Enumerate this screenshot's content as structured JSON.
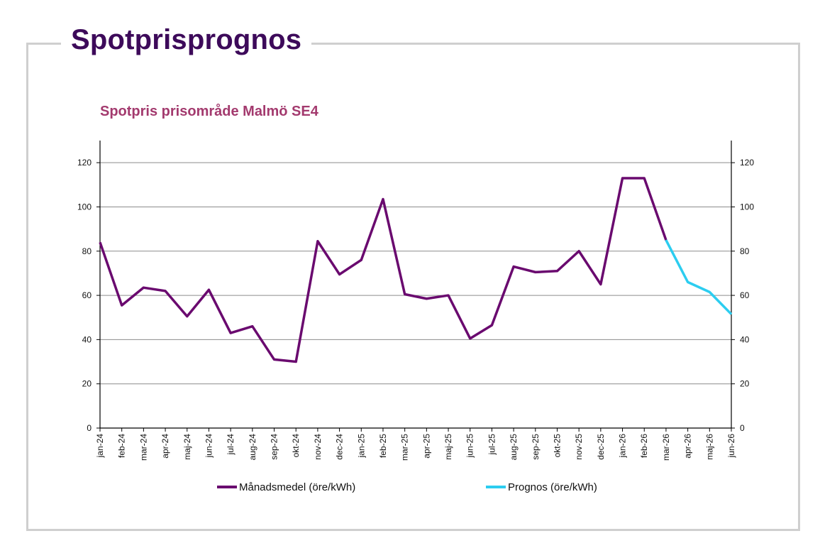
{
  "page": {
    "title": "Spotprisprognos"
  },
  "colors": {
    "title": "#3d0a5a",
    "chart_title": "#a33a6e",
    "actual": "#6a0a6f",
    "forecast": "#2ccdf0",
    "frame": "#cfcfcf",
    "grid": "#8c8c8c"
  },
  "chart_data": {
    "type": "line",
    "title": "Spotpris prisområde Malmö SE4",
    "xlabel": "",
    "ylabel": "",
    "ylim": [
      0,
      130
    ],
    "yticks": [
      0,
      20,
      40,
      60,
      80,
      100,
      120
    ],
    "grid": true,
    "legend_position": "bottom",
    "categories": [
      "jan-24",
      "feb-24",
      "mar-24",
      "apr-24",
      "maj-24",
      "jun-24",
      "jul-24",
      "aug-24",
      "sep-24",
      "okt-24",
      "nov-24",
      "dec-24",
      "jan-25",
      "feb-25",
      "mar-25",
      "apr-25",
      "maj-25",
      "jun-25",
      "jul-25",
      "aug-25",
      "sep-25",
      "okt-25",
      "nov-25",
      "dec-25",
      "jan-26",
      "feb-26",
      "mar-26",
      "apr-26",
      "maj-26",
      "jun-26"
    ],
    "series": [
      {
        "name": "Månadsmedel (öre/kWh)",
        "color": "#6a0a6f",
        "values": [
          84,
          55.5,
          63.5,
          62,
          50.5,
          62.5,
          43,
          46,
          31,
          30,
          84.5,
          69.5,
          76,
          103.5,
          60.5,
          58.5,
          60,
          40.5,
          46.5,
          73,
          70.5,
          71,
          80,
          65,
          113,
          113,
          85,
          null,
          null,
          null
        ]
      },
      {
        "name": "Prognos (öre/kWh)",
        "color": "#2ccdf0",
        "values": [
          null,
          null,
          null,
          null,
          null,
          null,
          null,
          null,
          null,
          null,
          null,
          null,
          null,
          null,
          null,
          null,
          null,
          null,
          null,
          null,
          null,
          null,
          null,
          null,
          null,
          null,
          85,
          66,
          61.5,
          51.5
        ]
      }
    ]
  }
}
